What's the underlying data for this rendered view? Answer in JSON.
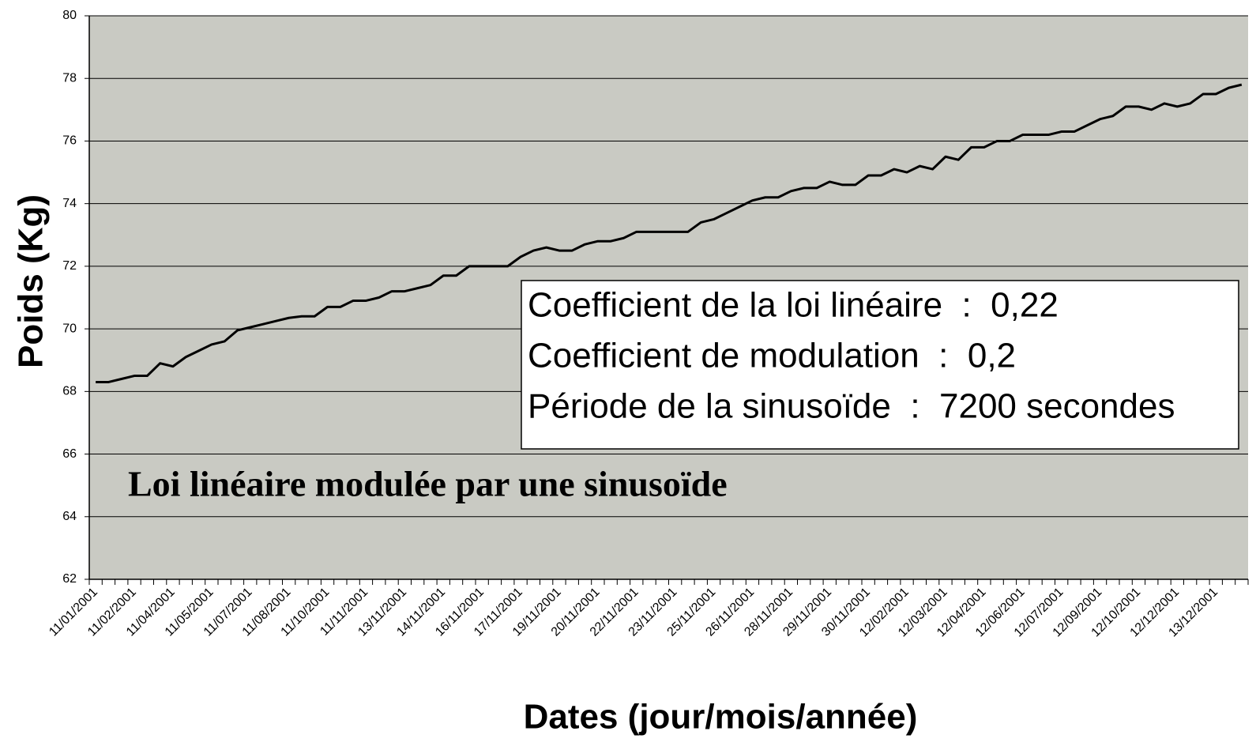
{
  "chart_data": {
    "type": "line",
    "title": "Loi linéaire modulée par une sinusoïde",
    "annotations": [
      "Coefficient de la loi linéaire  :  0,22",
      "Coefficient de modulation  :  0,2",
      "Période de la sinusoïde  :  7200 secondes"
    ],
    "x_label": "Dates (jour/mois/année)",
    "y_label": "Poids (Kg)",
    "categories": [
      "11/01/2001",
      null,
      null,
      "11/02/2001",
      null,
      null,
      "11/04/2001",
      null,
      null,
      "11/05/2001",
      null,
      null,
      "11/07/2001",
      null,
      null,
      "11/08/2001",
      null,
      null,
      "11/10/2001",
      null,
      null,
      "11/11/2001",
      null,
      null,
      "13/11/2001",
      null,
      null,
      "14/11/2001",
      null,
      null,
      "16/11/2001",
      null,
      null,
      "17/11/2001",
      null,
      null,
      "19/11/2001",
      null,
      null,
      "20/11/2001",
      null,
      null,
      "22/11/2001",
      null,
      null,
      "23/11/2001",
      null,
      null,
      "25/11/2001",
      null,
      null,
      "26/11/2001",
      null,
      null,
      "28/11/2001",
      null,
      null,
      "29/11/2001",
      null,
      null,
      "30/11/2001",
      null,
      null,
      "12/02/2001",
      null,
      null,
      "12/03/2001",
      null,
      null,
      "12/04/2001",
      null,
      null,
      "12/06/2001",
      null,
      null,
      "12/07/2001",
      null,
      null,
      "12/09/2001",
      null,
      null,
      "12/10/2001",
      null,
      null,
      "12/12/2001",
      null,
      null,
      "13/12/2001",
      null,
      null
    ],
    "values": [
      68.3,
      68.3,
      68.4,
      68.5,
      68.5,
      68.9,
      68.8,
      69.1,
      69.3,
      69.5,
      69.6,
      69.95,
      70.05,
      70.15,
      70.25,
      70.35,
      70.4,
      70.4,
      70.7,
      70.7,
      70.9,
      70.9,
      71.0,
      71.2,
      71.2,
      71.3,
      71.4,
      71.7,
      71.7,
      72.0,
      72.0,
      72.0,
      72.0,
      72.3,
      72.5,
      72.6,
      72.5,
      72.5,
      72.7,
      72.8,
      72.8,
      72.9,
      73.1,
      73.1,
      73.1,
      73.1,
      73.1,
      73.4,
      73.5,
      73.7,
      73.9,
      74.1,
      74.2,
      74.2,
      74.4,
      74.5,
      74.5,
      74.7,
      74.6,
      74.6,
      74.9,
      74.9,
      75.1,
      75.0,
      75.2,
      75.1,
      75.5,
      75.4,
      75.8,
      75.8,
      76.0,
      76.0,
      76.2,
      76.2,
      76.2,
      76.3,
      76.3,
      76.5,
      76.7,
      76.8,
      77.1,
      77.1,
      77.0,
      77.2,
      77.1,
      77.2,
      77.5,
      77.5,
      77.7,
      77.8
    ],
    "color": "#000000",
    "background": "#c9cac3",
    "ylim": [
      62,
      80
    ],
    "yticks": [
      62,
      64,
      66,
      68,
      70,
      72,
      74,
      76,
      78,
      80
    ],
    "grid": true
  }
}
